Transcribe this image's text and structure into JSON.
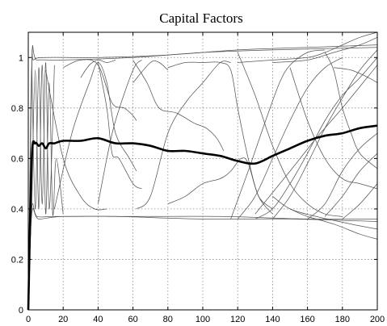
{
  "chart_data": {
    "type": "line",
    "title": "Capital Factors",
    "xlabel": "",
    "ylabel": "",
    "xlim": [
      0,
      200
    ],
    "ylim": [
      0,
      1.1
    ],
    "xticks": [
      0,
      20,
      40,
      60,
      80,
      100,
      120,
      140,
      160,
      180,
      200
    ],
    "yticks": [
      0,
      0.2,
      0.4,
      0.6,
      0.8,
      1
    ],
    "grid": true,
    "legend": "none",
    "series": [
      {
        "values": [
          [
            0,
            0
          ],
          [
            2,
            0.6
          ],
          [
            4,
            0.66
          ],
          [
            6,
            0.65
          ],
          [
            8,
            0.66
          ],
          [
            10,
            0.64
          ],
          [
            12,
            0.66
          ],
          [
            15,
            0.66
          ],
          [
            20,
            0.67
          ],
          [
            30,
            0.67
          ],
          [
            40,
            0.68
          ],
          [
            50,
            0.66
          ],
          [
            60,
            0.66
          ],
          [
            70,
            0.65
          ],
          [
            80,
            0.63
          ],
          [
            90,
            0.63
          ],
          [
            100,
            0.62
          ],
          [
            110,
            0.61
          ],
          [
            120,
            0.59
          ],
          [
            130,
            0.58
          ],
          [
            140,
            0.61
          ],
          [
            150,
            0.64
          ],
          [
            160,
            0.67
          ],
          [
            170,
            0.69
          ],
          [
            180,
            0.7
          ],
          [
            190,
            0.72
          ],
          [
            200,
            0.73
          ]
        ],
        "color": "#000000",
        "emphasis": true
      },
      {
        "values": [
          [
            0,
            0
          ],
          [
            2,
            0.95
          ],
          [
            3,
            0.99
          ],
          [
            10,
            1.0
          ],
          [
            40,
            1.0
          ],
          [
            80,
            1.01
          ],
          [
            120,
            1.03
          ],
          [
            160,
            1.04
          ],
          [
            200,
            1.05
          ]
        ],
        "color": "#222222"
      },
      {
        "values": [
          [
            0,
            0
          ],
          [
            2,
            0.97
          ],
          [
            5,
            0.99
          ],
          [
            20,
            0.99
          ],
          [
            60,
            1.0
          ],
          [
            100,
            1.02
          ],
          [
            140,
            1.03
          ],
          [
            200,
            1.04
          ]
        ],
        "color": "#333333"
      },
      {
        "values": [
          [
            0,
            0
          ],
          [
            2,
            0.4
          ],
          [
            5,
            0.37
          ],
          [
            15,
            0.37
          ],
          [
            50,
            0.37
          ],
          [
            100,
            0.36
          ],
          [
            150,
            0.36
          ],
          [
            200,
            0.35
          ]
        ],
        "color": "#222222"
      },
      {
        "values": [
          [
            0,
            0
          ],
          [
            2,
            0.38
          ],
          [
            6,
            0.36
          ],
          [
            20,
            0.37
          ],
          [
            60,
            0.37
          ],
          [
            110,
            0.37
          ],
          [
            160,
            0.36
          ],
          [
            200,
            0.36
          ]
        ],
        "color": "#333333"
      },
      {
        "values": [
          [
            2,
            0.4
          ],
          [
            4,
            0.95
          ],
          [
            6,
            0.4
          ],
          [
            8,
            0.97
          ],
          [
            10,
            0.38
          ],
          [
            12,
            0.9
          ],
          [
            14,
            0.38
          ],
          [
            16,
            0.6
          ],
          [
            20,
            0.38
          ]
        ],
        "color": "#444444"
      },
      {
        "values": [
          [
            2,
            0.98
          ],
          [
            4,
            0.4
          ],
          [
            6,
            0.96
          ],
          [
            8,
            0.42
          ],
          [
            10,
            0.98
          ],
          [
            12,
            0.4
          ],
          [
            15,
            0.97
          ]
        ],
        "color": "#555555"
      },
      {
        "values": [
          [
            10,
            0.95
          ],
          [
            20,
            0.6
          ],
          [
            30,
            0.45
          ],
          [
            38,
            0.4
          ],
          [
            45,
            0.4
          ]
        ],
        "color": "#555555"
      },
      {
        "values": [
          [
            15,
            0.4
          ],
          [
            25,
            0.7
          ],
          [
            35,
            0.9
          ],
          [
            40,
            0.98
          ],
          [
            45,
            0.9
          ],
          [
            50,
            0.7
          ],
          [
            58,
            0.6
          ],
          [
            62,
            0.55
          ]
        ],
        "color": "#555555"
      },
      {
        "values": [
          [
            20,
            0.96
          ],
          [
            30,
            0.99
          ],
          [
            40,
            0.97
          ],
          [
            48,
            0.82
          ],
          [
            55,
            0.8
          ],
          [
            60,
            0.77
          ],
          [
            62,
            0.75
          ]
        ],
        "color": "#666666"
      },
      {
        "values": [
          [
            40,
            0.98
          ],
          [
            45,
            0.8
          ],
          [
            48,
            0.62
          ],
          [
            52,
            0.6
          ],
          [
            60,
            0.5
          ],
          [
            65,
            0.48
          ]
        ],
        "color": "#555555"
      },
      {
        "values": [
          [
            40,
            0.42
          ],
          [
            45,
            0.6
          ],
          [
            50,
            0.75
          ],
          [
            60,
            0.95
          ],
          [
            65,
            0.99
          ]
        ],
        "color": "#666666"
      },
      {
        "values": [
          [
            60,
            0.99
          ],
          [
            68,
            0.9
          ],
          [
            75,
            0.8
          ],
          [
            85,
            0.78
          ],
          [
            95,
            0.74
          ],
          [
            102,
            0.72
          ],
          [
            108,
            0.68
          ],
          [
            112,
            0.63
          ]
        ],
        "color": "#555555"
      },
      {
        "values": [
          [
            62,
            0.4
          ],
          [
            70,
            0.45
          ],
          [
            80,
            0.7
          ],
          [
            90,
            0.82
          ],
          [
            100,
            0.9
          ],
          [
            110,
            0.98
          ],
          [
            116,
            0.98
          ]
        ],
        "color": "#666666"
      },
      {
        "values": [
          [
            30,
            0.92
          ],
          [
            35,
            0.97
          ],
          [
            40,
            0.99
          ],
          [
            45,
            0.98
          ],
          [
            50,
            0.99
          ]
        ],
        "color": "#777777"
      },
      {
        "values": [
          [
            60,
            0.9
          ],
          [
            70,
            0.98
          ],
          [
            75,
            0.98
          ],
          [
            80,
            0.95
          ]
        ],
        "color": "#777777"
      },
      {
        "values": [
          [
            80,
            0.96
          ],
          [
            90,
            0.98
          ],
          [
            100,
            0.98
          ],
          [
            110,
            0.98
          ],
          [
            116,
            0.95
          ],
          [
            120,
            0.8
          ],
          [
            126,
            0.6
          ],
          [
            132,
            0.45
          ],
          [
            140,
            0.38
          ]
        ],
        "color": "#444444"
      },
      {
        "values": [
          [
            80,
            0.42
          ],
          [
            90,
            0.45
          ],
          [
            100,
            0.5
          ],
          [
            110,
            0.52
          ],
          [
            116,
            0.55
          ],
          [
            122,
            0.6
          ],
          [
            126,
            0.58
          ],
          [
            132,
            0.45
          ],
          [
            140,
            0.4
          ]
        ],
        "color": "#555555"
      },
      {
        "values": [
          [
            120,
            1.02
          ],
          [
            130,
            0.85
          ],
          [
            140,
            0.65
          ],
          [
            150,
            0.5
          ],
          [
            160,
            0.42
          ],
          [
            170,
            0.38
          ],
          [
            180,
            0.37
          ]
        ],
        "color": "#555555"
      },
      {
        "values": [
          [
            120,
            0.36
          ],
          [
            130,
            0.45
          ],
          [
            140,
            0.6
          ],
          [
            150,
            0.75
          ],
          [
            160,
            0.88
          ],
          [
            170,
            0.96
          ],
          [
            180,
            1.0
          ]
        ],
        "color": "#666666"
      },
      {
        "values": [
          [
            116,
            0.36
          ],
          [
            126,
            0.55
          ],
          [
            136,
            0.75
          ],
          [
            144,
            0.9
          ],
          [
            150,
            0.97
          ],
          [
            160,
            1.02
          ],
          [
            170,
            1.03
          ]
        ],
        "color": "#666666"
      },
      {
        "values": [
          [
            130,
            0.36
          ],
          [
            140,
            0.4
          ],
          [
            150,
            0.5
          ],
          [
            160,
            0.62
          ],
          [
            170,
            0.75
          ],
          [
            180,
            0.85
          ],
          [
            190,
            0.92
          ],
          [
            200,
            1.0
          ]
        ],
        "color": "#555555"
      },
      {
        "values": [
          [
            140,
            0.36
          ],
          [
            150,
            0.45
          ],
          [
            160,
            0.58
          ],
          [
            170,
            0.72
          ],
          [
            180,
            0.84
          ],
          [
            190,
            0.95
          ],
          [
            200,
            1.03
          ]
        ],
        "color": "#666666"
      },
      {
        "values": [
          [
            150,
            0.96
          ],
          [
            160,
            0.75
          ],
          [
            170,
            0.6
          ],
          [
            180,
            0.52
          ],
          [
            190,
            0.5
          ],
          [
            200,
            0.48
          ]
        ],
        "color": "#555555"
      },
      {
        "values": [
          [
            170,
            1.02
          ],
          [
            175,
            0.95
          ],
          [
            180,
            0.8
          ],
          [
            185,
            0.7
          ],
          [
            190,
            0.62
          ],
          [
            200,
            0.56
          ]
        ],
        "color": "#555555"
      },
      {
        "values": [
          [
            120,
            0.98
          ],
          [
            140,
            0.99
          ],
          [
            160,
            1.0
          ],
          [
            170,
            1.02
          ],
          [
            180,
            1.05
          ],
          [
            190,
            1.08
          ],
          [
            200,
            1.1
          ]
        ],
        "color": "#666666"
      },
      {
        "values": [
          [
            140,
            0.98
          ],
          [
            160,
            0.99
          ],
          [
            175,
            1.02
          ],
          [
            190,
            1.05
          ],
          [
            200,
            1.08
          ]
        ],
        "color": "#777777"
      },
      {
        "values": [
          [
            130,
            0.38
          ],
          [
            150,
            0.55
          ],
          [
            165,
            0.68
          ],
          [
            180,
            0.8
          ],
          [
            200,
            0.97
          ]
        ],
        "color": "#777777"
      },
      {
        "values": [
          [
            170,
            0.37
          ],
          [
            180,
            0.45
          ],
          [
            190,
            0.55
          ],
          [
            200,
            0.62
          ]
        ],
        "color": "#666666"
      },
      {
        "values": [
          [
            160,
            0.36
          ],
          [
            170,
            0.42
          ],
          [
            180,
            0.55
          ],
          [
            190,
            0.64
          ],
          [
            200,
            0.7
          ]
        ],
        "color": "#777777"
      },
      {
        "values": [
          [
            150,
            0.4
          ],
          [
            160,
            0.37
          ],
          [
            175,
            0.34
          ],
          [
            190,
            0.3
          ],
          [
            200,
            0.28
          ]
        ],
        "color": "#555555"
      },
      {
        "values": [
          [
            140,
            0.45
          ],
          [
            150,
            0.4
          ],
          [
            165,
            0.37
          ],
          [
            185,
            0.34
          ],
          [
            200,
            0.32
          ]
        ],
        "color": "#666666"
      },
      {
        "values": [
          [
            175,
            0.96
          ],
          [
            185,
            0.95
          ],
          [
            195,
            0.92
          ],
          [
            200,
            0.9
          ]
        ],
        "color": "#777777"
      },
      {
        "values": [
          [
            180,
            0.36
          ],
          [
            190,
            0.42
          ],
          [
            200,
            0.5
          ]
        ],
        "color": "#777777"
      }
    ]
  }
}
